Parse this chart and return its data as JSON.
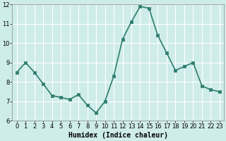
{
  "x": [
    0,
    1,
    2,
    3,
    4,
    5,
    6,
    7,
    8,
    9,
    10,
    11,
    12,
    13,
    14,
    15,
    16,
    17,
    18,
    19,
    20,
    21,
    22,
    23
  ],
  "y": [
    8.5,
    9.0,
    8.5,
    7.9,
    7.3,
    7.2,
    7.1,
    7.35,
    6.8,
    6.4,
    7.0,
    8.3,
    10.2,
    11.1,
    11.9,
    11.8,
    10.4,
    9.5,
    8.6,
    8.8,
    9.0,
    7.8,
    7.6,
    7.5
  ],
  "line_color": "#2e7d6e",
  "marker_color": "#2e7d6e",
  "bg_color": "#ceecea",
  "grid_color": "#ffffff",
  "xlabel": "Humidex (Indice chaleur)",
  "xlabel_fontsize": 7,
  "ylim": [
    6,
    12
  ],
  "xlim": [
    -0.5,
    23.5
  ],
  "yticks": [
    6,
    7,
    8,
    9,
    10,
    11,
    12
  ],
  "xticks": [
    0,
    1,
    2,
    3,
    4,
    5,
    6,
    7,
    8,
    9,
    10,
    11,
    12,
    13,
    14,
    15,
    16,
    17,
    18,
    19,
    20,
    21,
    22,
    23
  ],
  "tick_fontsize": 6,
  "linewidth": 1.2,
  "markersize": 2.5
}
